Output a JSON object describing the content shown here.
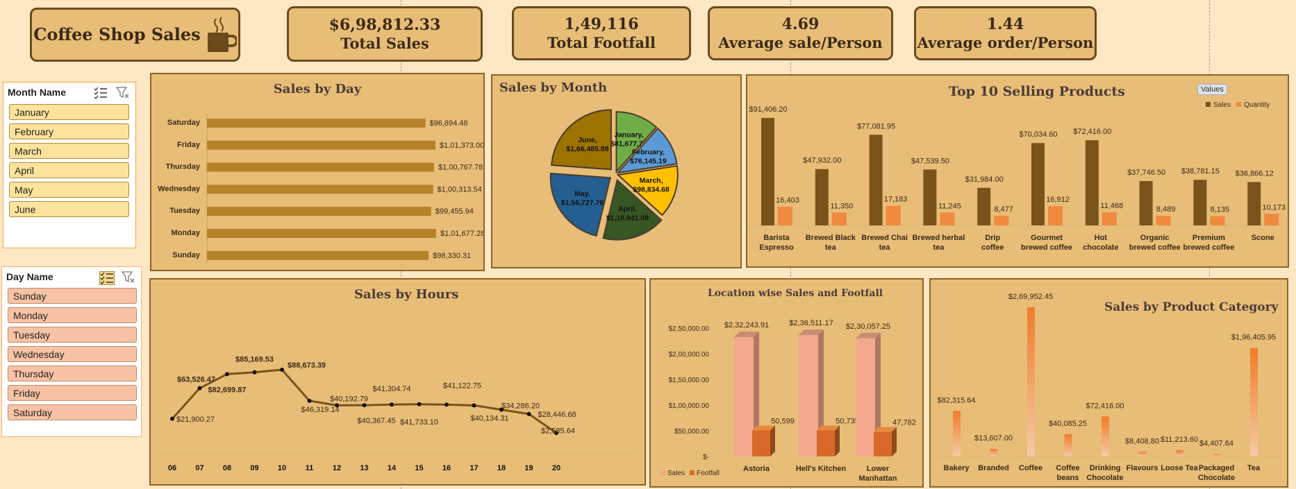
{
  "header": {
    "title": "Coffee Shop Sales",
    "icon": "coffee-cup-icon"
  },
  "kpis": [
    {
      "value": "$6,98,812.33",
      "label": "Total Sales"
    },
    {
      "value": "1,49,116",
      "label": "Total Footfall"
    },
    {
      "value": "4.69",
      "label": "Average sale/Person"
    },
    {
      "value": "1.44",
      "label": "Average order/Person"
    }
  ],
  "month_slicer": {
    "header": "Month Name",
    "items": [
      "January",
      "February",
      "March",
      "April",
      "May",
      "June"
    ]
  },
  "day_slicer": {
    "header": "Day Name",
    "items": [
      "Sunday",
      "Monday",
      "Tuesday",
      "Wednesday",
      "Thursday",
      "Friday",
      "Saturday"
    ]
  },
  "colors": {
    "background": "#fde7c4",
    "panel": "#e8bd78",
    "bar_brown": "#b5822a",
    "sales": "#7a531b",
    "quantity": "#ef8a3e"
  },
  "chart_data": [
    {
      "type": "bar",
      "orientation": "horizontal",
      "title": "Sales by Day",
      "categories": [
        "Saturday",
        "Friday",
        "Thursday",
        "Wednesday",
        "Tuesday",
        "Monday",
        "Sunday"
      ],
      "values": [
        96894.48,
        101373.0,
        100767.78,
        100313.54,
        99455.94,
        101677.28,
        98330.31
      ],
      "labels": [
        "$96,894.48",
        "$1,01,373.00",
        "$1,00,767.78",
        "$1,00,313.54",
        "$99,455.94",
        "$1,01,677.28",
        "$98,330.31"
      ]
    },
    {
      "type": "pie",
      "title": "Sales by Month",
      "categories": [
        "January",
        "February",
        "March",
        "April",
        "May",
        "June"
      ],
      "values": [
        81677.74,
        76145.19,
        98834.68,
        118941.08,
        156727.76,
        166485.88
      ],
      "labels": [
        "$81,677.74",
        "$76,145.19",
        "$98,834.68",
        "$1,18,941.08",
        "$1,56,727.76",
        "$1,66,485.88"
      ],
      "colors": [
        "#70ad47",
        "#5b9bd5",
        "#ffc000",
        "#375623",
        "#255e91",
        "#9c7300"
      ]
    },
    {
      "type": "bar",
      "title": "Top 10 Selling Products",
      "legend_title": "Values",
      "categories": [
        "Barista Espresso",
        "Brewed Black tea",
        "Brewed Chai tea",
        "Brewed herbal tea",
        "Drip coffee",
        "Gourmet brewed coffee",
        "Hot chocolate",
        "Organic brewed coffee",
        "Premium brewed coffee",
        "Scone"
      ],
      "series": [
        {
          "name": "Sales",
          "values": [
            91406.2,
            47932.0,
            77081.95,
            47539.5,
            31984.0,
            70034.6,
            72416.0,
            37746.5,
            38781.15,
            36866.12
          ],
          "labels": [
            "$91,406.20",
            "$47,932.00",
            "$77,081.95",
            "$47,539.50",
            "$31,984.00",
            "$70,034.60",
            "$72,416.00",
            "$37,746.50",
            "$38,781.15",
            "$36,866.12"
          ]
        },
        {
          "name": "Quantity",
          "values": [
            16403,
            11350,
            17183,
            11245,
            8477,
            16912,
            11468,
            8489,
            8135,
            10173
          ],
          "labels": [
            "16,403",
            "11,350",
            "17,183",
            "11,245",
            "8,477",
            "16,912",
            "11,468",
            "8,489",
            "8,135",
            "10,173"
          ]
        }
      ],
      "legend_position": "top-right"
    },
    {
      "type": "line",
      "title": "Sales by Hours",
      "categories": [
        "06",
        "07",
        "08",
        "09",
        "10",
        "11",
        "12",
        "13",
        "14",
        "15",
        "16",
        "17",
        "18",
        "19",
        "20"
      ],
      "values": [
        21900.27,
        63526.47,
        82699.87,
        85169.53,
        88673.39,
        46319.14,
        40192.79,
        40367.45,
        41304.74,
        41733.1,
        41122.75,
        40134.31,
        34286.2,
        28446.68,
        2585.64
      ],
      "labels": [
        "$21,900.27",
        "$63,526.47",
        "$82,699.87",
        "$85,169.53",
        "$88,673.39",
        "$46,319.14",
        "$40,192.79",
        "$40,367.45",
        "$41,304.74",
        "$41,733.10",
        "$41,122.75",
        "$40,134.31",
        "$34,286.20",
        "$28,446.68",
        "$2,585.64"
      ]
    },
    {
      "type": "bar",
      "style": "3d-column",
      "title": "Location wise Sales and Footfall",
      "categories": [
        "Astoria",
        "Hell's Kitchen",
        "Lower Manhattan"
      ],
      "series": [
        {
          "name": "Sales",
          "values": [
            232243.91,
            236511.17,
            230057.25
          ],
          "labels": [
            "$2,32,243.91",
            "$2,36,511.17",
            "$2,30,057.25"
          ]
        },
        {
          "name": "Footfall",
          "values": [
            50599,
            50735,
            47782
          ],
          "labels": [
            "50,599",
            "50,735",
            "47,782"
          ]
        }
      ],
      "yticks": [
        "$-",
        "$50,000.00",
        "$1,00,000.00",
        "$1,50,000.00",
        "$2,00,000.00",
        "$2,50,000.00"
      ],
      "ylim": [
        0,
        250000
      ],
      "legend_position": "bottom-left"
    },
    {
      "type": "bar",
      "title": "Sales by Product Category",
      "categories": [
        "Bakery",
        "Branded",
        "Coffee",
        "Coffee beans",
        "Drinking Chocolate",
        "Flavours",
        "Loose Tea",
        "Packaged Chocolate",
        "Tea"
      ],
      "values": [
        82315.64,
        13607.0,
        269952.45,
        40085.25,
        72416.0,
        8408.8,
        11213.6,
        4407.64,
        196405.95
      ],
      "labels": [
        "$82,315.64",
        "$13,607.00",
        "$2,69,952.45",
        "$40,085.25",
        "$72,416.00",
        "$8,408.80",
        "$11,213.60",
        "$4,407.64",
        "$1,96,405.95"
      ]
    }
  ]
}
